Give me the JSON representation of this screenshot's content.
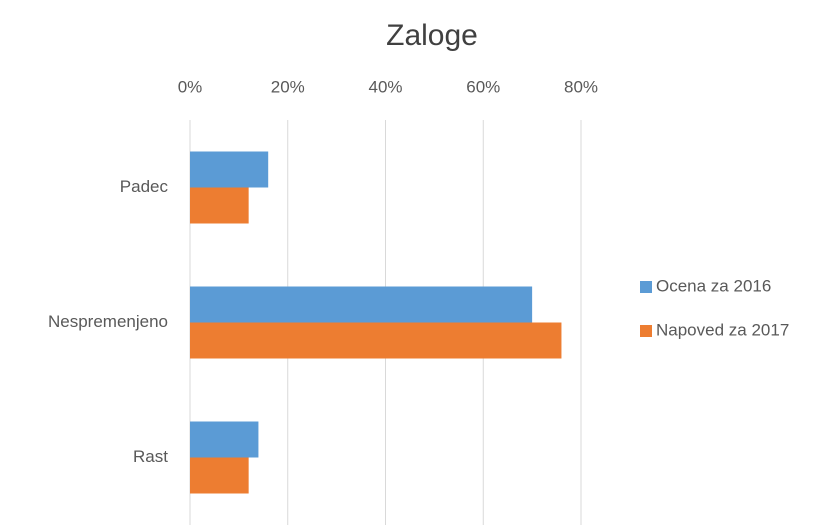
{
  "chart_data": {
    "type": "hbar",
    "title": "Zaloge",
    "categories": [
      "Padec",
      "Nespremenjeno",
      "Rast"
    ],
    "series": [
      {
        "name": "Ocena za 2016",
        "color": "#5b9bd5",
        "values": [
          16,
          70,
          14
        ]
      },
      {
        "name": "Napoved za 2017",
        "color": "#ed7d31",
        "values": [
          12,
          76,
          12
        ]
      }
    ],
    "xlim": [
      0,
      80
    ],
    "xticks": [
      {
        "value": 0,
        "label": "0%"
      },
      {
        "value": 20,
        "label": "20%"
      },
      {
        "value": 40,
        "label": "40%"
      },
      {
        "value": 60,
        "label": "60%"
      },
      {
        "value": 80,
        "label": "80%"
      }
    ],
    "grid": true,
    "legend": "right"
  }
}
